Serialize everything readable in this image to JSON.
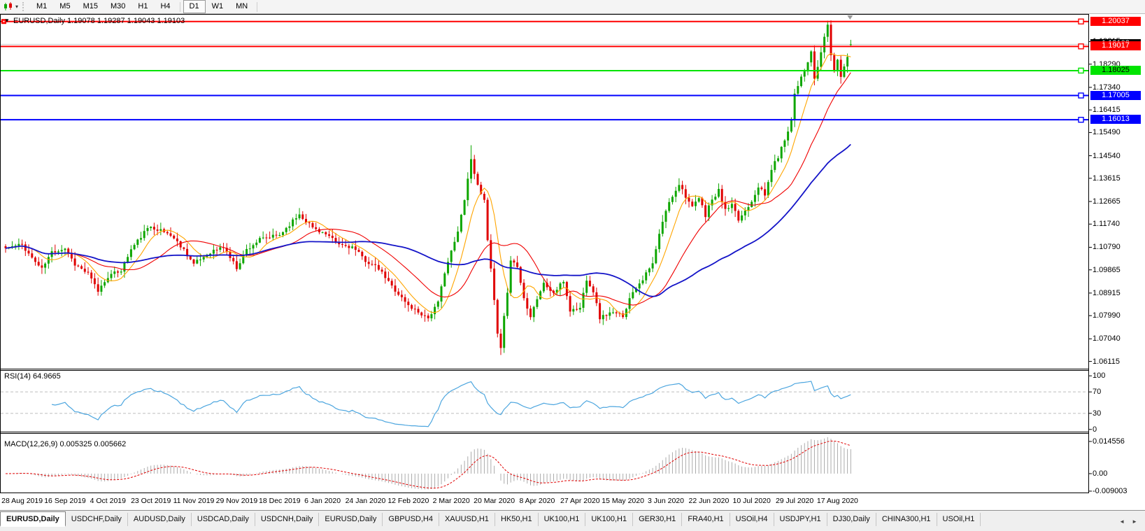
{
  "toolbar": {
    "chart_type_icon": "candlestick-chart",
    "dropdown_caret": "▾",
    "timeframes": [
      "M1",
      "M5",
      "M15",
      "M30",
      "H1",
      "H4",
      "D1",
      "W1",
      "MN"
    ],
    "active_timeframe": "D1"
  },
  "chart_header": {
    "collapse_arrow": "▼",
    "title": "EURUSD,Daily 1.19078 1.19287 1.19043 1.19103"
  },
  "price_scale": {
    "ticks": [
      {
        "label": "1.19215",
        "value": 1.19215
      },
      {
        "label": "1.18290",
        "value": 1.1829
      },
      {
        "label": "1.17340",
        "value": 1.1734
      },
      {
        "label": "1.16415",
        "value": 1.16415
      },
      {
        "label": "1.15490",
        "value": 1.1549
      },
      {
        "label": "1.14540",
        "value": 1.1454
      },
      {
        "label": "1.13615",
        "value": 1.13615
      },
      {
        "label": "1.12665",
        "value": 1.12665
      },
      {
        "label": "1.11740",
        "value": 1.1174
      },
      {
        "label": "1.10790",
        "value": 1.1079
      },
      {
        "label": "1.09865",
        "value": 1.09865
      },
      {
        "label": "1.08915",
        "value": 1.08915
      },
      {
        "label": "1.07990",
        "value": 1.0799
      },
      {
        "label": "1.07040",
        "value": 1.0704
      },
      {
        "label": "1.06115",
        "value": 1.06115
      }
    ]
  },
  "price_labels": {
    "bid": {
      "label": "1.19103",
      "value": 1.19103,
      "bg": "#000000",
      "fg": "#FFFFFF"
    },
    "hlines": [
      {
        "label": "1.20037",
        "value": 1.20037,
        "bg": "#FF0000",
        "fg": "#FFFFFF",
        "line": "#FF0000"
      },
      {
        "label": "1.19017",
        "value": 1.19017,
        "bg": "#FF0000",
        "fg": "#FFFFFF",
        "line": "#FF0000"
      },
      {
        "label": "1.18025",
        "value": 1.18025,
        "bg": "#00E400",
        "fg": "#000000",
        "line": "#00E400"
      },
      {
        "label": "1.17005",
        "value": 1.17005,
        "bg": "#0000FF",
        "fg": "#FFFFFF",
        "line": "#0000FF"
      },
      {
        "label": "1.16013",
        "value": 1.16013,
        "bg": "#0000FF",
        "fg": "#FFFFFF",
        "line": "#0000FF"
      }
    ]
  },
  "rsi_panel": {
    "label": "RSI(14) 64.9665",
    "ticks": [
      {
        "label": "100",
        "value": 100
      },
      {
        "label": "70",
        "value": 70
      },
      {
        "label": "30",
        "value": 30
      },
      {
        "label": "0",
        "value": 0
      }
    ]
  },
  "macd_panel": {
    "label": "MACD(12,26,9) 0.005325 0.005662",
    "ticks": [
      {
        "label": "0.014556",
        "value": 0.014556
      },
      {
        "label": "0.00",
        "value": 0
      },
      {
        "label": "-0.009003",
        "value": -0.009003
      }
    ]
  },
  "date_axis": [
    "28 Aug 2019",
    "16 Sep 2019",
    "4 Oct 2019",
    "23 Oct 2019",
    "11 Nov 2019",
    "29 Nov 2019",
    "18 Dec 2019",
    "6 Jan 2020",
    "24 Jan 2020",
    "12 Feb 2020",
    "2 Mar 2020",
    "20 Mar 2020",
    "8 Apr 2020",
    "27 Apr 2020",
    "15 May 2020",
    "3 Jun 2020",
    "22 Jun 2020",
    "10 Jul 2020",
    "29 Jul 2020",
    "17 Aug 2020"
  ],
  "tab_bar": {
    "scroll_left": "◄",
    "scroll_right": "►",
    "tabs": [
      {
        "label": "EURUSD,Daily",
        "active": true
      },
      {
        "label": "USDCHF,Daily"
      },
      {
        "label": "AUDUSD,Daily"
      },
      {
        "label": "USDCAD,Daily"
      },
      {
        "label": "USDCNH,Daily"
      },
      {
        "label": "EURUSD,Daily"
      },
      {
        "label": "GBPUSD,H4"
      },
      {
        "label": "XAUUSD,H1"
      },
      {
        "label": "HK50,H1"
      },
      {
        "label": "UK100,H1"
      },
      {
        "label": "UK100,H1"
      },
      {
        "label": "GER30,H1"
      },
      {
        "label": "FRA40,H1"
      },
      {
        "label": "USOil,H4"
      },
      {
        "label": "USDJPY,H1"
      },
      {
        "label": "DJ30,Daily"
      },
      {
        "label": "CHINA300,H1"
      },
      {
        "label": "USOil,H1"
      }
    ]
  },
  "chart_data": {
    "type": "candlestick",
    "symbol": "EURUSD",
    "timeframe": "Daily",
    "ohlc_current": {
      "open": 1.19078,
      "high": 1.19287,
      "low": 1.19043,
      "close": 1.19103
    },
    "bar_count": 257,
    "bars_per_date_tick": 13,
    "first_date_tick_bar": 5,
    "y_axis": {
      "visible_top": 1.2029,
      "visible_bottom": 1.0582,
      "tick_step": 0.00925,
      "grid": false
    },
    "horizontal_lines": [
      1.20037,
      1.19017,
      1.18025,
      1.17005,
      1.16013
    ],
    "bid_price": 1.19103,
    "close_anchors": [
      [
        0,
        1.1075
      ],
      [
        5,
        1.109
      ],
      [
        8,
        1.1035
      ],
      [
        11,
        1.099
      ],
      [
        14,
        1.106
      ],
      [
        18,
        1.1075
      ],
      [
        21,
        1.101
      ],
      [
        25,
        1.097
      ],
      [
        28,
        1.09
      ],
      [
        31,
        1.096
      ],
      [
        35,
        1.0985
      ],
      [
        38,
        1.107
      ],
      [
        42,
        1.114
      ],
      [
        44,
        1.1165
      ],
      [
        50,
        1.113
      ],
      [
        54,
        1.107
      ],
      [
        57,
        1.101
      ],
      [
        62,
        1.106
      ],
      [
        66,
        1.108
      ],
      [
        70,
        1.0995
      ],
      [
        73,
        1.107
      ],
      [
        77,
        1.111
      ],
      [
        83,
        1.113
      ],
      [
        89,
        1.1215
      ],
      [
        93,
        1.116
      ],
      [
        96,
        1.114
      ],
      [
        101,
        1.109
      ],
      [
        105,
        1.108
      ],
      [
        109,
        1.1025
      ],
      [
        113,
        1.099
      ],
      [
        117,
        1.092
      ],
      [
        122,
        1.084
      ],
      [
        128,
        1.079
      ],
      [
        131,
        1.085
      ],
      [
        133,
        1.098
      ],
      [
        135,
        1.106
      ],
      [
        137,
        1.114
      ],
      [
        139,
        1.128
      ],
      [
        141,
        1.144
      ],
      [
        143,
        1.133
      ],
      [
        145,
        1.128
      ],
      [
        146,
        1.11
      ],
      [
        147,
        1.099
      ],
      [
        148,
        1.086
      ],
      [
        149,
        1.072
      ],
      [
        150,
        1.066
      ],
      [
        151,
        1.079
      ],
      [
        152,
        1.09
      ],
      [
        153,
        1.103
      ],
      [
        155,
        1.1
      ],
      [
        157,
        1.087
      ],
      [
        159,
        1.08
      ],
      [
        161,
        1.087
      ],
      [
        163,
        1.093
      ],
      [
        166,
        1.089
      ],
      [
        169,
        1.094
      ],
      [
        171,
        1.082
      ],
      [
        174,
        1.083
      ],
      [
        176,
        1.095
      ],
      [
        178,
        1.09
      ],
      [
        180,
        1.079
      ],
      [
        183,
        1.081
      ],
      [
        187,
        1.08
      ],
      [
        190,
        1.09
      ],
      [
        193,
        1.095
      ],
      [
        196,
        1.101
      ],
      [
        198,
        1.113
      ],
      [
        200,
        1.123
      ],
      [
        202,
        1.129
      ],
      [
        204,
        1.134
      ],
      [
        206,
        1.129
      ],
      [
        208,
        1.124
      ],
      [
        210,
        1.128
      ],
      [
        212,
        1.121
      ],
      [
        213,
        1.125
      ],
      [
        216,
        1.131
      ],
      [
        218,
        1.123
      ],
      [
        220,
        1.125
      ],
      [
        222,
        1.119
      ],
      [
        224,
        1.123
      ],
      [
        226,
        1.127
      ],
      [
        228,
        1.133
      ],
      [
        230,
        1.129
      ],
      [
        232,
        1.14
      ],
      [
        234,
        1.145
      ],
      [
        236,
        1.152
      ],
      [
        238,
        1.16
      ],
      [
        239,
        1.171
      ],
      [
        241,
        1.178
      ],
      [
        243,
        1.183
      ],
      [
        244,
        1.188
      ],
      [
        245,
        1.177
      ],
      [
        246,
        1.181
      ],
      [
        247,
        1.188
      ],
      [
        248,
        1.194
      ],
      [
        249,
        1.199
      ],
      [
        250,
        1.187
      ],
      [
        251,
        1.18
      ],
      [
        252,
        1.184
      ],
      [
        253,
        1.178
      ],
      [
        254,
        1.182
      ],
      [
        255,
        1.186
      ],
      [
        256,
        1.19103
      ]
    ],
    "wick_overrides": {
      "141": {
        "high": 1.1497
      },
      "150": {
        "low": 1.0638
      },
      "249": {
        "high": 1.2007
      },
      "256": {
        "open": 1.19078,
        "high": 1.19287,
        "low": 1.19043
      }
    },
    "noise_seed": 11,
    "noise_amp": 0.0016,
    "wick_amp": 0.0026,
    "moving_averages": [
      {
        "period": 8,
        "color": "#FFA500",
        "width": 1.1
      },
      {
        "period": 21,
        "color": "#F00000",
        "width": 1.1
      },
      {
        "period": 50,
        "color": "#1414C8",
        "width": 1.8
      }
    ],
    "rsi": {
      "period": 14,
      "current": 64.9665,
      "color": "#4DA6DF",
      "levels": [
        70,
        30
      ]
    },
    "macd": {
      "fast": 12,
      "slow": 26,
      "signal_period": 9,
      "current_main": 0.005325,
      "current_signal": 0.005662,
      "hist_color": "#ABABAB",
      "signal_color": "#E00000"
    },
    "colors": {
      "up": "#0EA600",
      "down": "#E00000",
      "bid_line": "#C8C8C8",
      "border": "#000000",
      "rsi_level_line": "#BDBDBD"
    }
  }
}
